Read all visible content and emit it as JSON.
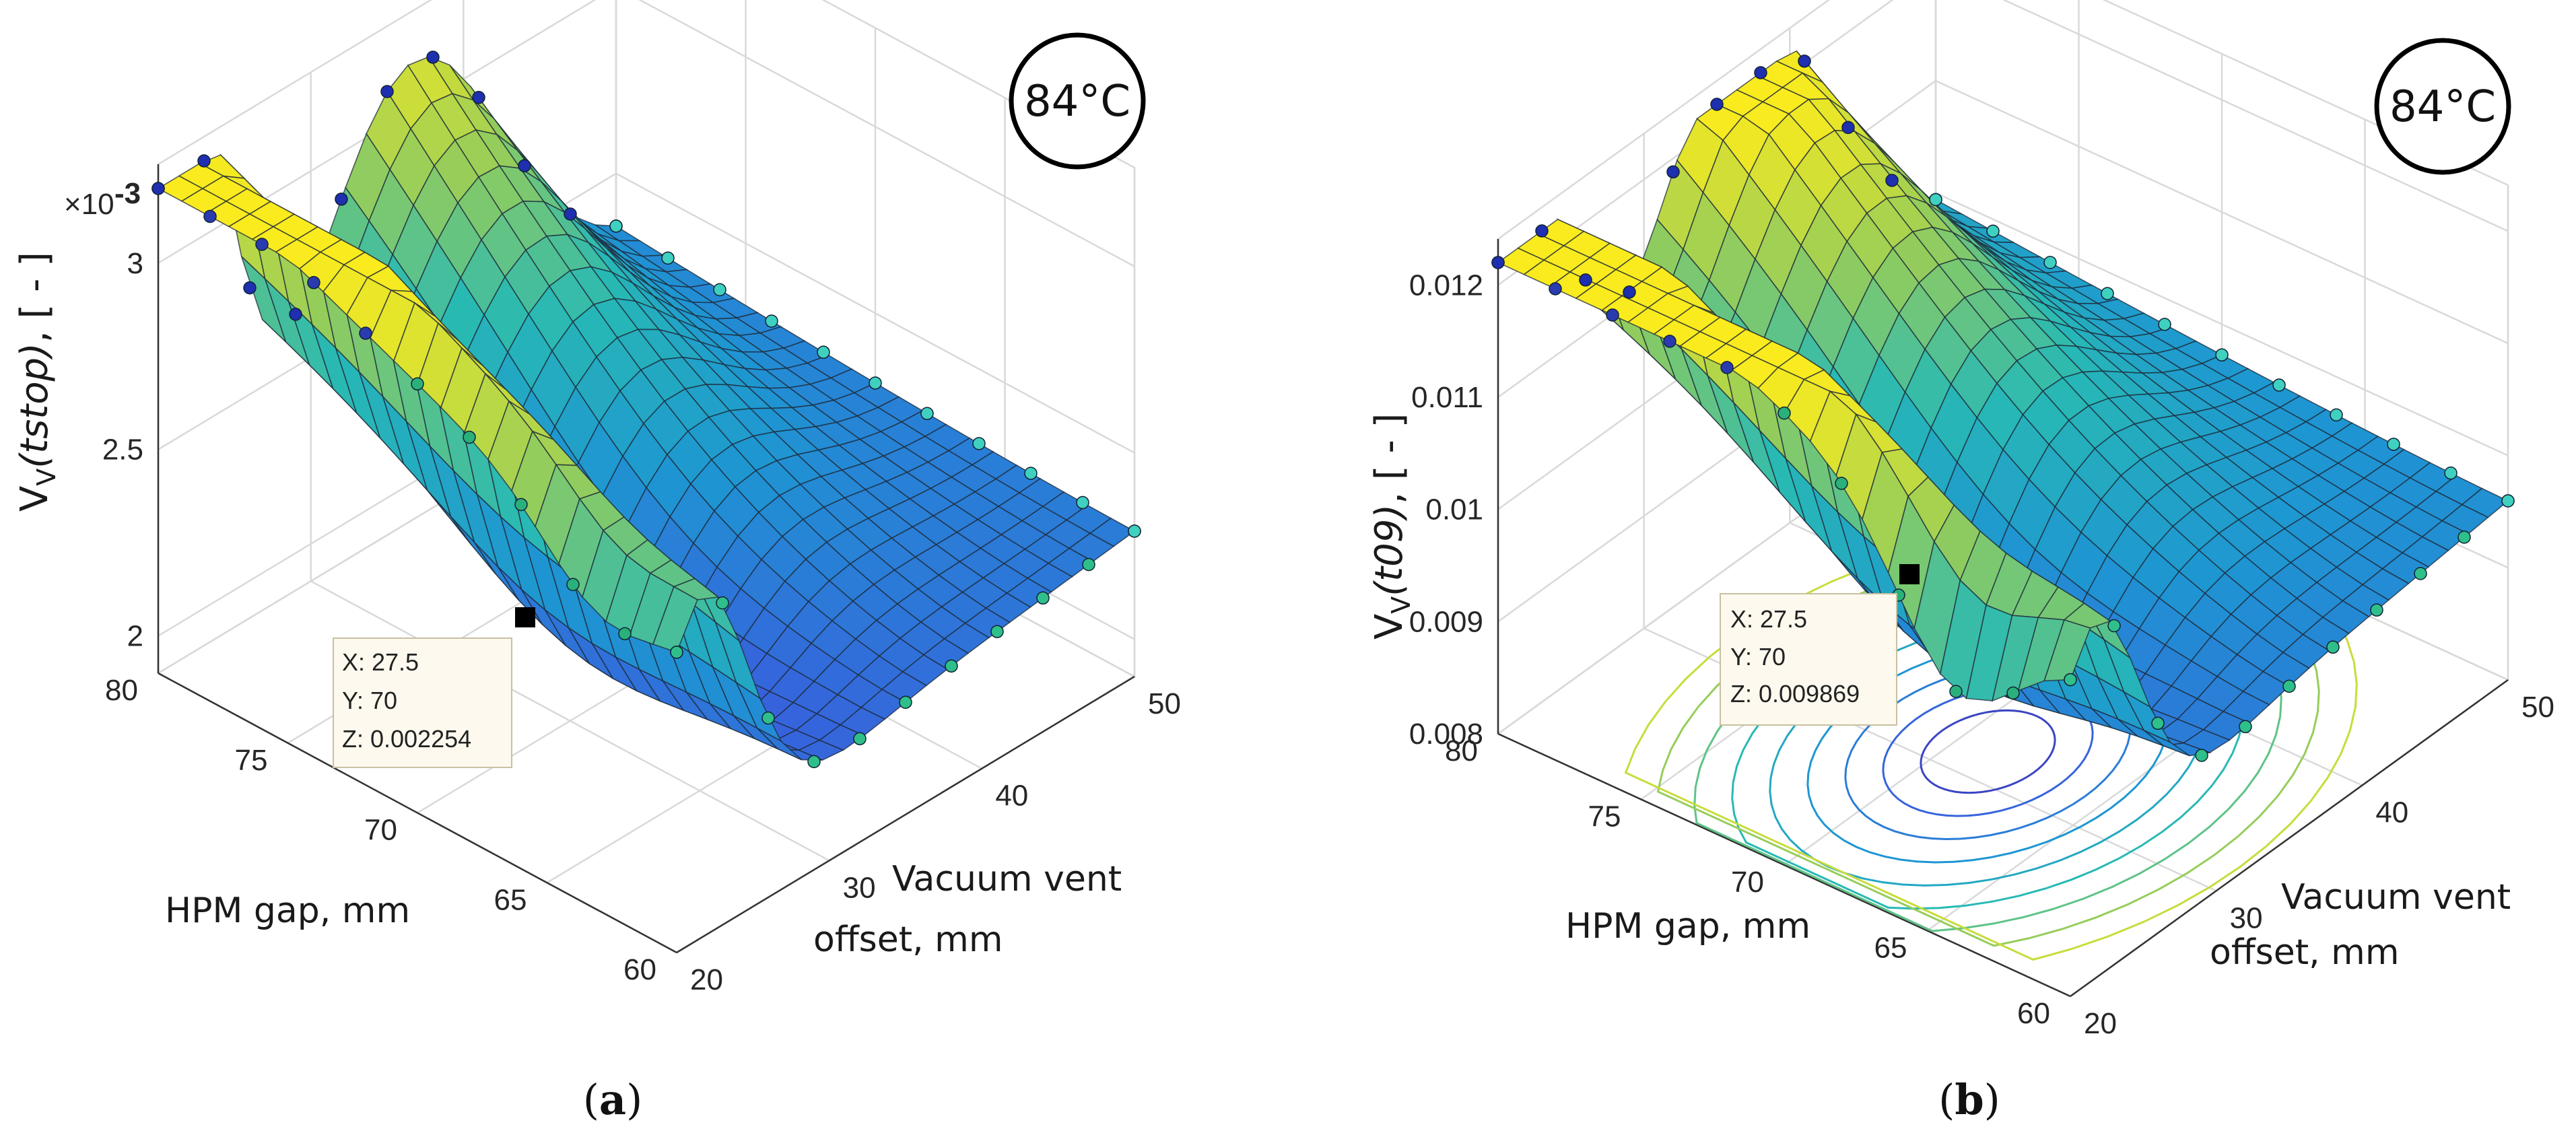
{
  "chart_data": [
    {
      "type": "surface",
      "panel": "a",
      "caption_paren_open": "(",
      "caption_letter": "a",
      "caption_paren_close": ")",
      "temperature_badge": "84°C",
      "z_exponent_prefix": "×10",
      "z_exponent_power": "-3",
      "z_label_main": "V",
      "z_label_sub": "V",
      "z_label_arg": "(tstop)",
      "z_label_rest": ", [ - ]",
      "x_label_line1": "Vacuum vent",
      "x_label_line2": "offset, mm",
      "y_label": "HPM gap, mm",
      "x_ticks": [
        "20",
        "30",
        "40",
        "50"
      ],
      "y_ticks": [
        "60",
        "65",
        "70",
        "75",
        "80"
      ],
      "z_ticks": [
        "2",
        "2.5",
        "3"
      ],
      "x_range": [
        20,
        50
      ],
      "y_range": [
        60,
        80
      ],
      "z_range": [
        1.9,
        3.2
      ],
      "z_scale": 0.001,
      "datatip": {
        "x": "X: 27.5",
        "y": "Y: 70",
        "z": "Z: 0.002254"
      },
      "datatip_values": {
        "x": 27.5,
        "y": 70,
        "z": 2.254
      },
      "contour_projection": false
    },
    {
      "type": "surface",
      "panel": "b",
      "caption_paren_open": "(",
      "caption_letter": "b",
      "caption_paren_close": ")",
      "temperature_badge": "84°C",
      "z_label_main": "V",
      "z_label_sub": "V",
      "z_label_arg": "(t09)",
      "z_label_rest": ", [ - ]",
      "x_label_line1": "Vacuum vent",
      "x_label_line2": "offset, mm",
      "y_label": "HPM gap, mm",
      "x_ticks": [
        "20",
        "30",
        "40",
        "50"
      ],
      "y_ticks": [
        "60",
        "65",
        "70",
        "75",
        "80"
      ],
      "z_ticks": [
        "0.008",
        "0.009",
        "0.01",
        "0.011",
        "0.012"
      ],
      "x_range": [
        20,
        50
      ],
      "y_range": [
        60,
        80
      ],
      "z_range": [
        0.008,
        0.0122
      ],
      "datatip": {
        "x": "X: 27.5",
        "y": "Y: 70",
        "z": "Z: 0.009869"
      },
      "datatip_values": {
        "x": 27.5,
        "y": 70,
        "z": 0.009869
      },
      "contour_projection": true
    }
  ]
}
